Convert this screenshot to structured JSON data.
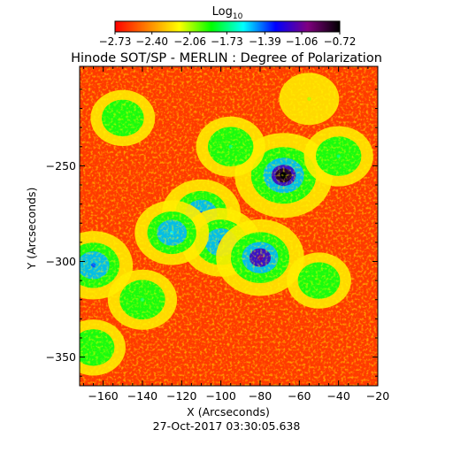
{
  "chart_data": {
    "type": "heatmap",
    "title": "Hinode SOT/SP - MERLIN : Degree of Polarization",
    "subtitle": "27-Oct-2017 03:30:05.638",
    "xlabel": "X (Arcseconds)",
    "ylabel": "Y (Arcseconds)",
    "xlim": [
      -172,
      -20
    ],
    "ylim": [
      -365,
      -198
    ],
    "x_ticks": [
      -160,
      -140,
      -120,
      -100,
      -80,
      -60,
      -40,
      -20
    ],
    "y_ticks": [
      -250,
      -300,
      -350
    ],
    "x_tick_labels": [
      "−160",
      "−140",
      "−120",
      "−100",
      "−80",
      "−60",
      "−40",
      "−20"
    ],
    "y_tick_labels": [
      "−250",
      "−300",
      "−350"
    ],
    "colorbar": {
      "label_base": "Log",
      "label_sub": "10",
      "range": [
        -2.73,
        -0.72
      ],
      "tick_values": [
        -2.73,
        -2.4,
        -2.06,
        -1.73,
        -1.39,
        -1.06,
        -0.72
      ],
      "tick_labels": [
        "−2.73",
        "−2.40",
        "−2.06",
        "−1.73",
        "−1.39",
        "−1.06",
        "−0.72"
      ],
      "colormap": [
        "#ff0000",
        "#ff8000",
        "#ffff00",
        "#00ff00",
        "#00ffff",
        "#0000ff",
        "#800080",
        "#000000"
      ]
    },
    "features": [
      {
        "x": -68,
        "y": -255,
        "level": -0.72
      },
      {
        "x": -110,
        "y": -275,
        "level": -1.39
      },
      {
        "x": -100,
        "y": -290,
        "level": -1.39
      },
      {
        "x": -80,
        "y": -298,
        "level": -1.06
      },
      {
        "x": -165,
        "y": -302,
        "level": -1.39
      },
      {
        "x": -125,
        "y": -285,
        "level": -1.55
      },
      {
        "x": -95,
        "y": -240,
        "level": -1.73
      },
      {
        "x": -40,
        "y": -245,
        "level": -1.73
      },
      {
        "x": -150,
        "y": -225,
        "level": -1.9
      },
      {
        "x": -50,
        "y": -310,
        "level": -1.9
      },
      {
        "x": -140,
        "y": -320,
        "level": -1.73
      },
      {
        "x": -165,
        "y": -345,
        "level": -1.9
      },
      {
        "x": -55,
        "y": -215,
        "level": -2.06
      }
    ],
    "background_level": -2.6
  }
}
